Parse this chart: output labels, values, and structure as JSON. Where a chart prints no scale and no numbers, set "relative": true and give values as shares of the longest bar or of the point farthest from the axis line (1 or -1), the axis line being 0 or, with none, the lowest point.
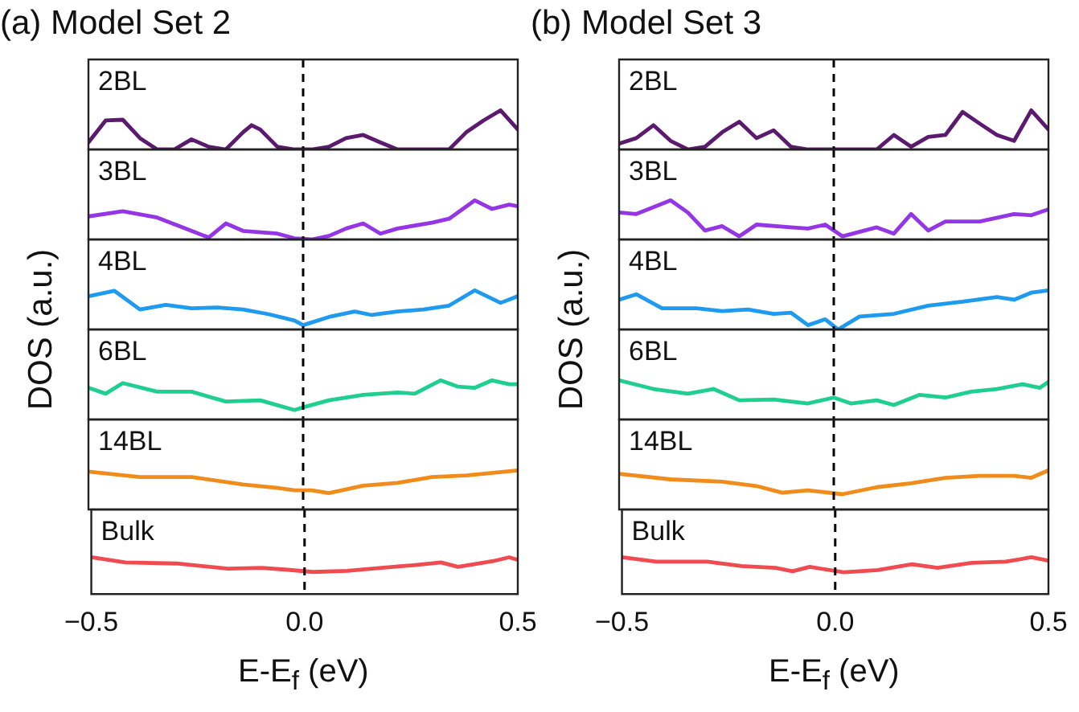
{
  "chart_data": [
    {
      "type": "line",
      "title": "(a) Model Set 2",
      "ylabel": "DOS (a.u.)",
      "annotations": [
        "2BL"
      ],
      "relative": true,
      "xlim": [
        -0.5,
        0.5
      ],
      "tick_labels": false,
      "ref_lines": [
        {
          "axis": "x",
          "value": 0,
          "color": "#000000",
          "line_style": "dashed"
        }
      ],
      "x": [
        -0.5,
        -0.46,
        -0.42,
        -0.38,
        -0.34,
        -0.3,
        -0.26,
        -0.22,
        -0.18,
        -0.14,
        -0.12,
        -0.1,
        -0.06,
        -0.02,
        0.02,
        0.06,
        0.1,
        0.14,
        0.18,
        0.22,
        0.26,
        0.3,
        0.34,
        0.38,
        0.42,
        0.46,
        0.5
      ],
      "series": [
        {
          "color": "#5c1a6e",
          "values": [
            0.18,
            0.74,
            0.76,
            0.29,
            0,
            0,
            0.26,
            0.07,
            0,
            0.44,
            0.62,
            0.51,
            0.07,
            0,
            0,
            0.07,
            0.29,
            0.37,
            0.18,
            0,
            0,
            0,
            0,
            0.44,
            0.74,
            1,
            0.51
          ]
        }
      ]
    },
    {
      "type": "line",
      "annotations": [
        "3BL"
      ],
      "relative": true,
      "xlim": [
        -0.5,
        0.5
      ],
      "tick_labels": false,
      "ref_lines": [
        {
          "axis": "x",
          "value": 0,
          "color": "#000000",
          "line_style": "dashed"
        }
      ],
      "x": [
        -0.5,
        -0.42,
        -0.34,
        -0.26,
        -0.22,
        -0.18,
        -0.14,
        -0.06,
        -0.02,
        0.02,
        0.06,
        0.1,
        0.14,
        0.18,
        0.22,
        0.3,
        0.34,
        0.4,
        0.44,
        0.48,
        0.5
      ],
      "series": [
        {
          "color": "#9435e6",
          "values": [
            0.59,
            0.72,
            0.56,
            0.22,
            0.05,
            0.41,
            0.22,
            0.15,
            0.03,
            0,
            0.09,
            0.28,
            0.41,
            0.15,
            0.28,
            0.43,
            0.53,
            1,
            0.78,
            0.89,
            0.85
          ]
        }
      ]
    },
    {
      "type": "line",
      "annotations": [
        "4BL"
      ],
      "relative": true,
      "xlim": [
        -0.5,
        0.5
      ],
      "tick_labels": false,
      "ref_lines": [
        {
          "axis": "x",
          "value": 0,
          "color": "#000000",
          "line_style": "dashed"
        }
      ],
      "x": [
        -0.5,
        -0.44,
        -0.38,
        -0.32,
        -0.26,
        -0.2,
        -0.14,
        -0.08,
        -0.02,
        0,
        0.06,
        0.12,
        0.16,
        0.22,
        0.28,
        0.34,
        0.4,
        0.46,
        0.5
      ],
      "series": [
        {
          "color": "#1e9bef",
          "values": [
            0.85,
            0.99,
            0.51,
            0.63,
            0.54,
            0.56,
            0.51,
            0.39,
            0.23,
            0.11,
            0.32,
            0.46,
            0.37,
            0.46,
            0.51,
            0.61,
            1,
            0.68,
            0.85
          ]
        }
      ]
    },
    {
      "type": "line",
      "annotations": [
        "6BL"
      ],
      "relative": true,
      "xlim": [
        -0.5,
        0.5
      ],
      "tick_labels": false,
      "ref_lines": [
        {
          "axis": "x",
          "value": 0,
          "color": "#000000",
          "line_style": "dashed"
        }
      ],
      "x": [
        -0.5,
        -0.46,
        -0.42,
        -0.34,
        -0.26,
        -0.18,
        -0.1,
        -0.02,
        0,
        0.06,
        0.14,
        0.22,
        0.26,
        0.32,
        0.36,
        0.4,
        0.44,
        0.48,
        0.5
      ],
      "series": [
        {
          "color": "#1fcf8f",
          "values": [
            0.81,
            0.66,
            0.93,
            0.71,
            0.71,
            0.46,
            0.49,
            0.24,
            0.31,
            0.49,
            0.63,
            0.69,
            0.66,
            1,
            0.84,
            0.81,
            1,
            0.9,
            0.9
          ]
        }
      ]
    },
    {
      "type": "line",
      "annotations": [
        "14BL"
      ],
      "relative": true,
      "xlim": [
        -0.5,
        0.5
      ],
      "tick_labels": false,
      "ref_lines": [
        {
          "axis": "x",
          "value": 0,
          "color": "#000000",
          "line_style": "dashed"
        }
      ],
      "x": [
        -0.5,
        -0.38,
        -0.26,
        -0.14,
        -0.06,
        -0.02,
        0.02,
        0.06,
        0.14,
        0.22,
        0.3,
        0.38,
        0.5
      ],
      "series": [
        {
          "color": "#f08c1b",
          "values": [
            0.97,
            0.83,
            0.83,
            0.64,
            0.55,
            0.49,
            0.49,
            0.42,
            0.61,
            0.68,
            0.83,
            0.87,
            1
          ]
        }
      ]
    },
    {
      "type": "line",
      "xlabel": "E-E$_{f}$ (eV)",
      "annotations": [
        "Bulk"
      ],
      "relative": true,
      "xlim": [
        -0.5,
        0.5
      ],
      "xticks": [
        {
          "value": -0.5,
          "label": "−0.5"
        },
        {
          "value": 0,
          "label": "0.0"
        },
        {
          "value": 0.5,
          "label": "0.5"
        }
      ],
      "tick_labels": "x",
      "ref_lines": [
        {
          "axis": "x",
          "value": 0,
          "color": "#000000",
          "line_style": "dashed"
        }
      ],
      "x": [
        -0.5,
        -0.42,
        -0.3,
        -0.18,
        -0.1,
        -0.04,
        0.02,
        0.1,
        0.18,
        0.26,
        0.32,
        0.36,
        0.44,
        0.48,
        0.5
      ],
      "series": [
        {
          "color": "#ef4b50",
          "values": [
            1,
            0.86,
            0.83,
            0.69,
            0.71,
            0.66,
            0.6,
            0.63,
            0.71,
            0.79,
            0.86,
            0.74,
            0.89,
            1,
            0.93
          ]
        }
      ]
    },
    {
      "type": "line",
      "title": "(b) Model Set 3",
      "ylabel": "DOS (a.u.)",
      "annotations": [
        "2BL"
      ],
      "relative": true,
      "xlim": [
        -0.5,
        0.5
      ],
      "tick_labels": false,
      "ref_lines": [
        {
          "axis": "x",
          "value": 0,
          "color": "#000000",
          "line_style": "dashed"
        }
      ],
      "x": [
        -0.5,
        -0.46,
        -0.42,
        -0.38,
        -0.34,
        -0.3,
        -0.26,
        -0.22,
        -0.18,
        -0.14,
        -0.1,
        -0.06,
        0.1,
        0.14,
        0.18,
        0.22,
        0.26,
        0.3,
        0.34,
        0.38,
        0.42,
        0.46,
        0.5
      ],
      "series": [
        {
          "color": "#5c1a6e",
          "values": [
            0.15,
            0.29,
            0.62,
            0.22,
            0,
            0.07,
            0.44,
            0.71,
            0.29,
            0.49,
            0.07,
            0,
            0,
            0.37,
            0.07,
            0.32,
            0.37,
            0.96,
            0.66,
            0.37,
            0.22,
            1,
            0.51
          ]
        }
      ]
    },
    {
      "type": "line",
      "annotations": [
        "3BL"
      ],
      "relative": true,
      "xlim": [
        -0.5,
        0.5
      ],
      "tick_labels": false,
      "ref_lines": [
        {
          "axis": "x",
          "value": 0,
          "color": "#000000",
          "line_style": "dashed"
        }
      ],
      "x": [
        -0.5,
        -0.46,
        -0.38,
        -0.34,
        -0.3,
        -0.26,
        -0.22,
        -0.18,
        -0.1,
        -0.06,
        -0.02,
        0.02,
        0.1,
        0.14,
        0.18,
        0.22,
        0.26,
        0.34,
        0.42,
        0.46,
        0.5
      ],
      "series": [
        {
          "color": "#9435e6",
          "values": [
            0.69,
            0.65,
            1,
            0.69,
            0.23,
            0.34,
            0.08,
            0.38,
            0.31,
            0.28,
            0.38,
            0.08,
            0.31,
            0.15,
            0.65,
            0.23,
            0.46,
            0.46,
            0.65,
            0.62,
            0.77
          ]
        }
      ]
    },
    {
      "type": "line",
      "annotations": [
        "4BL"
      ],
      "relative": true,
      "xlim": [
        -0.5,
        0.5
      ],
      "tick_labels": false,
      "ref_lines": [
        {
          "axis": "x",
          "value": 0,
          "color": "#000000",
          "line_style": "dashed"
        }
      ],
      "x": [
        -0.5,
        -0.46,
        -0.4,
        -0.32,
        -0.26,
        -0.2,
        -0.14,
        -0.1,
        -0.06,
        -0.02,
        0.01,
        0.06,
        0.14,
        0.22,
        0.3,
        0.38,
        0.42,
        0.46,
        0.5
      ],
      "series": [
        {
          "color": "#1e9bef",
          "values": [
            0.76,
            0.9,
            0.54,
            0.54,
            0.47,
            0.51,
            0.4,
            0.43,
            0.11,
            0.26,
            0,
            0.33,
            0.4,
            0.61,
            0.71,
            0.83,
            0.76,
            0.94,
            1
          ]
        }
      ]
    },
    {
      "type": "line",
      "annotations": [
        "6BL"
      ],
      "relative": true,
      "xlim": [
        -0.5,
        0.5
      ],
      "tick_labels": false,
      "ref_lines": [
        {
          "axis": "x",
          "value": 0,
          "color": "#000000",
          "line_style": "dashed"
        }
      ],
      "x": [
        -0.5,
        -0.42,
        -0.34,
        -0.28,
        -0.22,
        -0.14,
        -0.06,
        0,
        0.04,
        0.1,
        0.14,
        0.2,
        0.26,
        0.32,
        0.38,
        0.44,
        0.48,
        0.5
      ],
      "series": [
        {
          "color": "#1fcf8f",
          "values": [
            1,
            0.78,
            0.66,
            0.78,
            0.49,
            0.51,
            0.41,
            0.56,
            0.41,
            0.49,
            0.37,
            0.63,
            0.56,
            0.71,
            0.78,
            0.9,
            0.81,
            0.96
          ]
        }
      ]
    },
    {
      "type": "line",
      "annotations": [
        "14BL"
      ],
      "relative": true,
      "xlim": [
        -0.5,
        0.5
      ],
      "tick_labels": false,
      "ref_lines": [
        {
          "axis": "x",
          "value": 0,
          "color": "#000000",
          "line_style": "dashed"
        }
      ],
      "x": [
        -0.5,
        -0.38,
        -0.26,
        -0.18,
        -0.12,
        -0.06,
        0.02,
        0.1,
        0.18,
        0.26,
        0.34,
        0.42,
        0.46,
        0.5
      ],
      "series": [
        {
          "color": "#f08c1b",
          "values": [
            0.91,
            0.77,
            0.71,
            0.6,
            0.43,
            0.49,
            0.39,
            0.57,
            0.67,
            0.81,
            0.86,
            0.86,
            0.81,
            1
          ]
        }
      ]
    },
    {
      "type": "line",
      "xlabel": "E-E$_{f}$ (eV)",
      "annotations": [
        "Bulk"
      ],
      "relative": true,
      "xlim": [
        -0.5,
        0.5
      ],
      "xticks": [
        {
          "value": -0.5,
          "label": "−0.5"
        },
        {
          "value": 0,
          "label": "0.0"
        },
        {
          "value": 0.5,
          "label": "0.5"
        }
      ],
      "tick_labels": "x",
      "ref_lines": [
        {
          "axis": "x",
          "value": 0,
          "color": "#000000",
          "line_style": "dashed"
        }
      ],
      "x": [
        -0.5,
        -0.42,
        -0.3,
        -0.22,
        -0.14,
        -0.1,
        -0.06,
        0.02,
        0.1,
        0.18,
        0.24,
        0.32,
        0.4,
        0.46,
        0.5
      ],
      "series": [
        {
          "color": "#ef4b50",
          "values": [
            1,
            0.88,
            0.88,
            0.76,
            0.71,
            0.62,
            0.74,
            0.59,
            0.65,
            0.81,
            0.71,
            0.85,
            0.88,
            1,
            0.91
          ]
        }
      ]
    }
  ]
}
